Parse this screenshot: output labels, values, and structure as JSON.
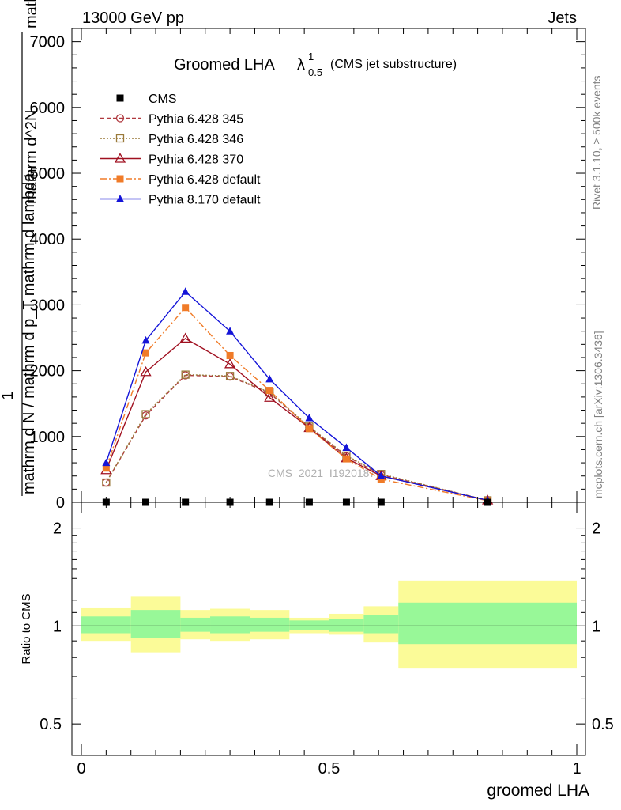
{
  "header": {
    "left": "13000 GeV pp",
    "right": "Jets"
  },
  "title": {
    "main": "Groomed LHA",
    "lambda": "λ",
    "sup": "1",
    "sub": "0.5",
    "suffix": "(CMS jet substructure)"
  },
  "side": {
    "rivet": "Rivet 3.1.10, ≥ 500k events",
    "mcplots": "mcplots.cern.ch [arXiv:1306.3436]"
  },
  "watermark": "CMS_2021_I1920187",
  "axes": {
    "ylabel_top": "1",
    "ylabel_num": "mathrm d N / mathrm d p_T mathrm d lambda",
    "ylabel_den": "mathrm d^2N",
    "ylabel_den2": "mathrm d p_T mathrm d lambda",
    "ratio_ylabel": "Ratio to CMS",
    "xlabel": "groomed LHA",
    "main_yticks": [
      "0",
      "1000",
      "2000",
      "3000",
      "4000",
      "5000",
      "6000",
      "7000"
    ],
    "ratio_yticks": [
      "0.5",
      "1",
      "2"
    ],
    "xticks": [
      "0",
      "0.5",
      "1"
    ]
  },
  "colors": {
    "data": "#000000",
    "py345": "#b0393f",
    "py346": "#9a7a3a",
    "py370": "#a01020",
    "py6def": "#f07b28",
    "py8def": "#1414d8",
    "band_inner": "#98f898",
    "band_outer": "#fbfb98"
  },
  "chart_data": {
    "type": "line",
    "x_range": [
      0,
      1
    ],
    "main_ylim": [
      0,
      7200
    ],
    "ratio_ylim": [
      0.4,
      2.4
    ],
    "legend_position": "top-left",
    "bins": [
      0,
      0.1,
      0.2,
      0.26,
      0.34,
      0.42,
      0.5,
      0.57,
      0.64,
      1.0
    ],
    "x": [
      0.05,
      0.13,
      0.21,
      0.3,
      0.38,
      0.46,
      0.535,
      0.605,
      0.82
    ],
    "data": [
      0,
      0,
      0,
      0,
      0,
      0,
      0,
      0,
      0
    ],
    "series": [
      {
        "name": "CMS",
        "key": "data",
        "values": [
          0,
          0,
          0,
          0,
          0,
          0,
          0,
          0,
          0
        ],
        "marker": "square-filled",
        "dash": ""
      },
      {
        "name": "Pythia 6.428 345",
        "key": "py345",
        "values": [
          300,
          1320,
          1930,
          1910,
          1660,
          1140,
          700,
          420,
          30
        ],
        "marker": "circle-open",
        "dash": "5,3"
      },
      {
        "name": "Pythia 6.428 346",
        "key": "py346",
        "values": [
          300,
          1340,
          1940,
          1920,
          1670,
          1150,
          710,
          430,
          30
        ],
        "marker": "square-open",
        "dash": "2,2"
      },
      {
        "name": "Pythia 6.428 370",
        "key": "py370",
        "values": [
          490,
          1980,
          2490,
          2100,
          1590,
          1130,
          670,
          400,
          30
        ],
        "marker": "triangle-open",
        "dash": ""
      },
      {
        "name": "Pythia 6.428 default",
        "key": "py6def",
        "values": [
          520,
          2270,
          2960,
          2230,
          1700,
          1120,
          660,
          350,
          25
        ],
        "marker": "square-filled",
        "dash": "8,3,2,3"
      },
      {
        "name": "Pythia 8.170 default",
        "key": "py8def",
        "values": [
          600,
          2460,
          3200,
          2600,
          1870,
          1280,
          830,
          400,
          30
        ],
        "marker": "triangle-filled",
        "dash": ""
      }
    ],
    "ratio_band_inner": [
      [
        0.95,
        1.07
      ],
      [
        0.92,
        1.12
      ],
      [
        0.96,
        1.06
      ],
      [
        0.95,
        1.07
      ],
      [
        0.96,
        1.06
      ],
      [
        0.97,
        1.04
      ],
      [
        0.96,
        1.05
      ],
      [
        0.95,
        1.08
      ],
      [
        0.88,
        1.18
      ]
    ],
    "ratio_band_outer": [
      [
        0.9,
        1.14
      ],
      [
        0.83,
        1.23
      ],
      [
        0.91,
        1.12
      ],
      [
        0.9,
        1.13
      ],
      [
        0.91,
        1.12
      ],
      [
        0.95,
        1.06
      ],
      [
        0.94,
        1.09
      ],
      [
        0.89,
        1.15
      ],
      [
        0.74,
        1.38
      ]
    ]
  }
}
